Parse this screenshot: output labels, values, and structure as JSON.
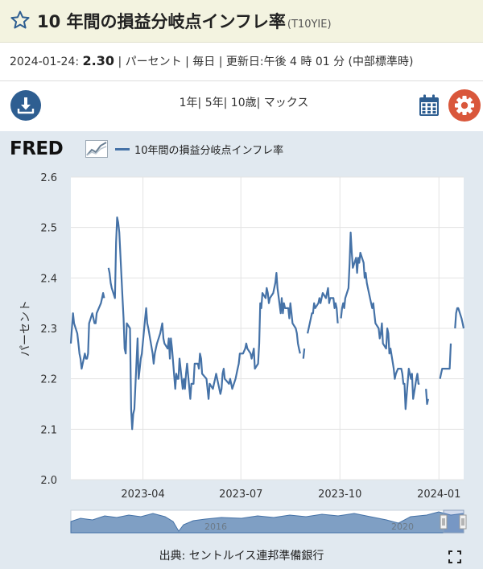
{
  "header": {
    "title": "10 年間の損益分岐点インフレ率",
    "series_id": "(T10YIE)"
  },
  "meta": {
    "date": "2024-01-24:",
    "value": "2.30",
    "rest": "| パーセント | 毎日 | 更新日:午後 4 時 01 分 (中部標準時)"
  },
  "range_links": [
    "1年",
    "5年",
    "10歳",
    "マックス"
  ],
  "icons": {
    "download": "download-icon",
    "calendar": "calendar-icon",
    "settings": "gear-icon",
    "favorite": "star-icon",
    "fullscreen": "fullscreen-icon"
  },
  "colors": {
    "series": "#4572a7",
    "plot_bg": "#ffffff",
    "panel_bg": "#e1e9f0",
    "download": "#2e5e91",
    "settings": "#d9573b",
    "title_bar": "#f3f3e0"
  },
  "fred": {
    "logo": "FRED"
  },
  "source": "出典: セントルイス連邦準備銀行",
  "navigator": {
    "labels": [
      "2016",
      "2020"
    ]
  },
  "chart_data": {
    "type": "line",
    "ylabel": "パーセント",
    "ylim": [
      2.0,
      2.6
    ],
    "y_ticks": [
      "2.0",
      "2.1",
      "2.2",
      "2.3",
      "2.4",
      "2.5",
      "2.6"
    ],
    "x_ticks": [
      "2023-04",
      "2023-07",
      "2023-10",
      "2024-01"
    ],
    "xlim": [
      "2023-01-24",
      "2024-01-24"
    ],
    "grid": true,
    "series": [
      {
        "name": "10年間の損益分岐点インフレ率",
        "segments": [
          [
            [
              "2023-01-24",
              2.27
            ],
            [
              "2023-01-25",
              2.3
            ],
            [
              "2023-01-26",
              2.33
            ],
            [
              "2023-01-27",
              2.31
            ],
            [
              "2023-01-30",
              2.29
            ],
            [
              "2023-01-31",
              2.27
            ],
            [
              "2023-02-01",
              2.25
            ],
            [
              "2023-02-02",
              2.24
            ],
            [
              "2023-02-03",
              2.22
            ],
            [
              "2023-02-06",
              2.25
            ],
            [
              "2023-02-07",
              2.24
            ],
            [
              "2023-02-08",
              2.24
            ],
            [
              "2023-02-09",
              2.25
            ],
            [
              "2023-02-10",
              2.31
            ],
            [
              "2023-02-13",
              2.33
            ],
            [
              "2023-02-14",
              2.32
            ],
            [
              "2023-02-15",
              2.31
            ],
            [
              "2023-02-16",
              2.31
            ],
            [
              "2023-02-17",
              2.33
            ],
            [
              "2023-02-21",
              2.35
            ],
            [
              "2023-02-22",
              2.36
            ],
            [
              "2023-02-23",
              2.37
            ],
            [
              "2023-02-24",
              2.36
            ]
          ],
          [
            [
              "2023-02-28",
              2.42
            ],
            [
              "2023-03-01",
              2.41
            ],
            [
              "2023-03-02",
              2.39
            ],
            [
              "2023-03-03",
              2.38
            ],
            [
              "2023-03-06",
              2.36
            ],
            [
              "2023-03-07",
              2.47
            ],
            [
              "2023-03-08",
              2.52
            ],
            [
              "2023-03-09",
              2.51
            ],
            [
              "2023-03-10",
              2.49
            ],
            [
              "2023-03-13",
              2.36
            ],
            [
              "2023-03-14",
              2.32
            ],
            [
              "2023-03-15",
              2.26
            ],
            [
              "2023-03-16",
              2.25
            ],
            [
              "2023-03-17",
              2.31
            ],
            [
              "2023-03-20",
              2.3
            ],
            [
              "2023-03-21",
              2.14
            ],
            [
              "2023-03-22",
              2.1
            ],
            [
              "2023-03-23",
              2.13
            ],
            [
              "2023-03-24",
              2.14
            ],
            [
              "2023-03-27",
              2.28
            ],
            [
              "2023-03-28",
              2.2
            ],
            [
              "2023-03-29",
              2.22
            ],
            [
              "2023-03-30",
              2.24
            ],
            [
              "2023-03-31",
              2.25
            ],
            [
              "2023-04-03",
              2.32
            ],
            [
              "2023-04-04",
              2.34
            ],
            [
              "2023-04-05",
              2.31
            ],
            [
              "2023-04-06",
              2.3
            ],
            [
              "2023-04-10",
              2.25
            ],
            [
              "2023-04-11",
              2.23
            ],
            [
              "2023-04-12",
              2.25
            ],
            [
              "2023-04-13",
              2.26
            ],
            [
              "2023-04-14",
              2.27
            ],
            [
              "2023-04-17",
              2.29
            ],
            [
              "2023-04-18",
              2.3
            ],
            [
              "2023-04-19",
              2.31
            ],
            [
              "2023-04-20",
              2.28
            ],
            [
              "2023-04-21",
              2.27
            ],
            [
              "2023-04-24",
              2.26
            ],
            [
              "2023-04-25",
              2.28
            ],
            [
              "2023-04-26",
              2.24
            ],
            [
              "2023-04-27",
              2.28
            ],
            [
              "2023-04-28",
              2.26
            ],
            [
              "2023-05-01",
              2.18
            ],
            [
              "2023-05-02",
              2.21
            ],
            [
              "2023-05-03",
              2.2
            ],
            [
              "2023-05-04",
              2.2
            ],
            [
              "2023-05-05",
              2.24
            ],
            [
              "2023-05-08",
              2.18
            ],
            [
              "2023-05-09",
              2.2
            ],
            [
              "2023-05-10",
              2.18
            ],
            [
              "2023-05-11",
              2.21
            ],
            [
              "2023-05-12",
              2.23
            ],
            [
              "2023-05-15",
              2.16
            ],
            [
              "2023-05-16",
              2.19
            ],
            [
              "2023-05-17",
              2.19
            ],
            [
              "2023-05-18",
              2.19
            ],
            [
              "2023-05-19",
              2.23
            ],
            [
              "2023-05-22",
              2.23
            ],
            [
              "2023-05-23",
              2.22
            ],
            [
              "2023-05-24",
              2.25
            ],
            [
              "2023-05-25",
              2.24
            ],
            [
              "2023-05-26",
              2.21
            ],
            [
              "2023-05-30",
              2.2
            ],
            [
              "2023-05-31",
              2.18
            ],
            [
              "2023-06-01",
              2.16
            ],
            [
              "2023-06-02",
              2.19
            ],
            [
              "2023-06-05",
              2.18
            ],
            [
              "2023-06-06",
              2.19
            ],
            [
              "2023-06-07",
              2.2
            ],
            [
              "2023-06-08",
              2.21
            ],
            [
              "2023-06-09",
              2.2
            ],
            [
              "2023-06-12",
              2.17
            ],
            [
              "2023-06-13",
              2.18
            ],
            [
              "2023-06-14",
              2.21
            ],
            [
              "2023-06-15",
              2.22
            ],
            [
              "2023-06-16",
              2.2
            ],
            [
              "2023-06-20",
              2.19
            ],
            [
              "2023-06-21",
              2.2
            ],
            [
              "2023-06-22",
              2.19
            ],
            [
              "2023-06-23",
              2.18
            ],
            [
              "2023-06-26",
              2.2
            ],
            [
              "2023-06-27",
              2.21
            ],
            [
              "2023-06-28",
              2.22
            ],
            [
              "2023-06-29",
              2.23
            ],
            [
              "2023-06-30",
              2.25
            ],
            [
              "2023-07-03",
              2.25
            ],
            [
              "2023-07-05",
              2.26
            ],
            [
              "2023-07-06",
              2.27
            ],
            [
              "2023-07-07",
              2.26
            ],
            [
              "2023-07-10",
              2.25
            ],
            [
              "2023-07-11",
              2.24
            ],
            [
              "2023-07-12",
              2.25
            ],
            [
              "2023-07-13",
              2.26
            ],
            [
              "2023-07-14",
              2.22
            ],
            [
              "2023-07-17",
              2.23
            ],
            [
              "2023-07-18",
              2.27
            ],
            [
              "2023-07-19",
              2.35
            ],
            [
              "2023-07-20",
              2.34
            ],
            [
              "2023-07-21",
              2.37
            ],
            [
              "2023-07-24",
              2.36
            ],
            [
              "2023-07-25",
              2.38
            ],
            [
              "2023-07-26",
              2.37
            ],
            [
              "2023-07-27",
              2.35
            ],
            [
              "2023-07-28",
              2.36
            ],
            [
              "2023-07-31",
              2.37
            ],
            [
              "2023-08-01",
              2.38
            ],
            [
              "2023-08-02",
              2.39
            ],
            [
              "2023-08-03",
              2.41
            ],
            [
              "2023-08-04",
              2.38
            ],
            [
              "2023-08-07",
              2.33
            ],
            [
              "2023-08-08",
              2.36
            ],
            [
              "2023-08-09",
              2.33
            ],
            [
              "2023-08-10",
              2.35
            ],
            [
              "2023-08-11",
              2.34
            ],
            [
              "2023-08-14",
              2.34
            ],
            [
              "2023-08-15",
              2.32
            ],
            [
              "2023-08-16",
              2.35
            ],
            [
              "2023-08-17",
              2.33
            ],
            [
              "2023-08-18",
              2.31
            ],
            [
              "2023-08-21",
              2.3
            ],
            [
              "2023-08-22",
              2.29
            ],
            [
              "2023-08-23",
              2.27
            ],
            [
              "2023-08-24",
              2.26
            ],
            [
              "2023-08-25",
              2.25
            ]
          ],
          [
            [
              "2023-08-28",
              2.24
            ],
            [
              "2023-08-29",
              2.26
            ]
          ],
          [
            [
              "2023-09-01",
              2.29
            ],
            [
              "2023-09-05",
              2.33
            ],
            [
              "2023-09-06",
              2.33
            ],
            [
              "2023-09-07",
              2.35
            ],
            [
              "2023-09-08",
              2.34
            ],
            [
              "2023-09-11",
              2.35
            ],
            [
              "2023-09-12",
              2.36
            ],
            [
              "2023-09-13",
              2.35
            ],
            [
              "2023-09-14",
              2.36
            ],
            [
              "2023-09-15",
              2.37
            ],
            [
              "2023-09-18",
              2.36
            ],
            [
              "2023-09-19",
              2.37
            ],
            [
              "2023-09-20",
              2.38
            ],
            [
              "2023-09-21",
              2.35
            ],
            [
              "2023-09-22",
              2.36
            ],
            [
              "2023-09-25",
              2.36
            ],
            [
              "2023-09-26",
              2.34
            ],
            [
              "2023-09-27",
              2.35
            ],
            [
              "2023-09-28",
              2.34
            ],
            [
              "2023-09-29",
              2.31
            ]
          ],
          [
            [
              "2023-10-02",
              2.32
            ],
            [
              "2023-10-03",
              2.34
            ],
            [
              "2023-10-04",
              2.35
            ],
            [
              "2023-10-05",
              2.34
            ],
            [
              "2023-10-06",
              2.36
            ],
            [
              "2023-10-09",
              2.38
            ],
            [
              "2023-10-10",
              2.43
            ],
            [
              "2023-10-11",
              2.49
            ],
            [
              "2023-10-12",
              2.45
            ],
            [
              "2023-10-13",
              2.42
            ],
            [
              "2023-10-16",
              2.44
            ],
            [
              "2023-10-17",
              2.41
            ],
            [
              "2023-10-18",
              2.44
            ],
            [
              "2023-10-19",
              2.43
            ],
            [
              "2023-10-20",
              2.45
            ],
            [
              "2023-10-23",
              2.43
            ],
            [
              "2023-10-24",
              2.4
            ],
            [
              "2023-10-25",
              2.41
            ],
            [
              "2023-10-26",
              2.39
            ],
            [
              "2023-10-27",
              2.38
            ],
            [
              "2023-10-30",
              2.35
            ],
            [
              "2023-10-31",
              2.34
            ],
            [
              "2023-11-01",
              2.35
            ],
            [
              "2023-11-02",
              2.33
            ],
            [
              "2023-11-03",
              2.31
            ],
            [
              "2023-11-06",
              2.3
            ],
            [
              "2023-11-07",
              2.28
            ],
            [
              "2023-11-08",
              2.29
            ],
            [
              "2023-11-09",
              2.31
            ],
            [
              "2023-11-10",
              2.27
            ],
            [
              "2023-11-13",
              2.26
            ],
            [
              "2023-11-14",
              2.3
            ],
            [
              "2023-11-15",
              2.29
            ],
            [
              "2023-11-16",
              2.25
            ],
            [
              "2023-11-17",
              2.26
            ],
            [
              "2023-11-20",
              2.22
            ],
            [
              "2023-11-21",
              2.2
            ],
            [
              "2023-11-22",
              2.21
            ],
            [
              "2023-11-24",
              2.22
            ],
            [
              "2023-11-27",
              2.22
            ],
            [
              "2023-11-28",
              2.21
            ],
            [
              "2023-11-29",
              2.19
            ],
            [
              "2023-11-30",
              2.19
            ],
            [
              "2023-12-01",
              2.14
            ],
            [
              "2023-12-04",
              2.22
            ],
            [
              "2023-12-05",
              2.21
            ],
            [
              "2023-12-06",
              2.2
            ],
            [
              "2023-12-07",
              2.21
            ],
            [
              "2023-12-08",
              2.16
            ],
            [
              "2023-12-11",
              2.2
            ],
            [
              "2023-12-12",
              2.21
            ],
            [
              "2023-12-13",
              2.19
            ],
            [
              "2023-12-14",
              2.19
            ]
          ],
          [
            [
              "2023-12-20",
              2.18
            ],
            [
              "2023-12-21",
              2.15
            ],
            [
              "2023-12-22",
              2.16
            ]
          ],
          [
            [
              "2024-01-02",
              2.2
            ],
            [
              "2024-01-03",
              2.21
            ],
            [
              "2024-01-04",
              2.22
            ],
            [
              "2024-01-05",
              2.22
            ],
            [
              "2024-01-08",
              2.22
            ],
            [
              "2024-01-09",
              2.22
            ],
            [
              "2024-01-10",
              2.22
            ],
            [
              "2024-01-11",
              2.22
            ],
            [
              "2024-01-12",
              2.27
            ]
          ],
          [
            [
              "2024-01-16",
              2.3
            ],
            [
              "2024-01-17",
              2.33
            ],
            [
              "2024-01-18",
              2.34
            ],
            [
              "2024-01-19",
              2.34
            ],
            [
              "2024-01-22",
              2.32
            ],
            [
              "2024-01-23",
              2.31
            ],
            [
              "2024-01-24",
              2.3
            ]
          ]
        ]
      }
    ]
  }
}
